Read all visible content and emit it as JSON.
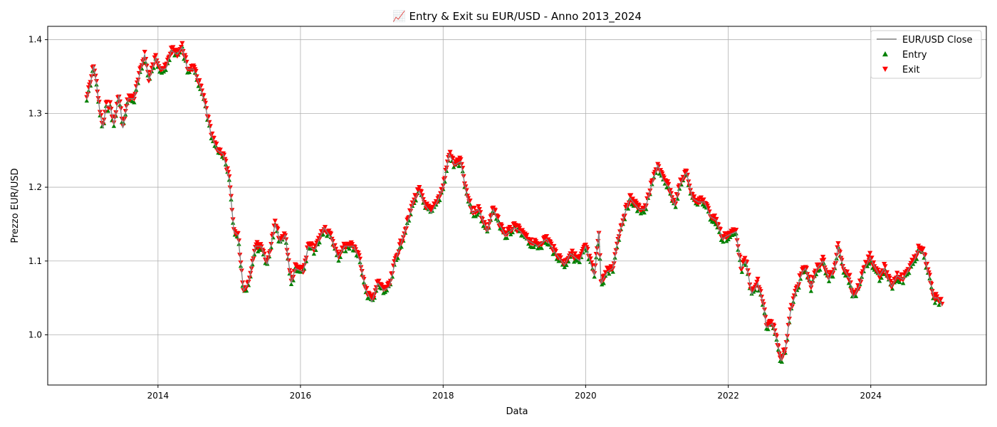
{
  "chart_data": {
    "type": "line",
    "title": "📈 Entry & Exit su EUR/USD - Anno 2013_2024",
    "xlabel": "Data",
    "ylabel": "Prezzo EUR/USD",
    "xlim": [
      "2012-06-15",
      "2025-08-15"
    ],
    "ylim": [
      0.932,
      1.418
    ],
    "x_ticks": [
      "2014",
      "2016",
      "2018",
      "2020",
      "2022",
      "2024"
    ],
    "y_ticks": [
      "1.0",
      "1.1",
      "1.2",
      "1.3",
      "1.4"
    ],
    "grid": true,
    "legend_position": "top-right",
    "legend": [
      "EUR/USD Close",
      "Entry",
      "Exit"
    ],
    "colors": {
      "close": "#808080",
      "entry": "#008000",
      "exit": "#ff0000"
    },
    "series": [
      {
        "name": "EUR/USD Close",
        "role": "close",
        "points": [
          [
            "2013-01-01",
            1.32
          ],
          [
            "2013-01-20",
            1.34
          ],
          [
            "2013-02-05",
            1.365
          ],
          [
            "2013-02-20",
            1.34
          ],
          [
            "2013-03-10",
            1.3
          ],
          [
            "2013-03-25",
            1.28
          ],
          [
            "2013-04-10",
            1.31
          ],
          [
            "2013-05-01",
            1.31
          ],
          [
            "2013-05-20",
            1.285
          ],
          [
            "2013-06-15",
            1.325
          ],
          [
            "2013-07-05",
            1.28
          ],
          [
            "2013-08-01",
            1.32
          ],
          [
            "2013-09-01",
            1.32
          ],
          [
            "2013-10-01",
            1.355
          ],
          [
            "2013-10-25",
            1.38
          ],
          [
            "2013-11-15",
            1.345
          ],
          [
            "2013-12-20",
            1.375
          ],
          [
            "2014-01-15",
            1.36
          ],
          [
            "2014-02-10",
            1.36
          ],
          [
            "2014-03-10",
            1.385
          ],
          [
            "2014-04-10",
            1.38
          ],
          [
            "2014-05-05",
            1.39
          ],
          [
            "2014-06-01",
            1.36
          ],
          [
            "2014-07-01",
            1.36
          ],
          [
            "2014-08-01",
            1.34
          ],
          [
            "2014-09-01",
            1.31
          ],
          [
            "2014-10-01",
            1.27
          ],
          [
            "2014-11-01",
            1.25
          ],
          [
            "2014-12-01",
            1.245
          ],
          [
            "2015-01-01",
            1.21
          ],
          [
            "2015-01-25",
            1.14
          ],
          [
            "2015-02-15",
            1.135
          ],
          [
            "2015-03-15",
            1.06
          ],
          [
            "2015-04-10",
            1.07
          ],
          [
            "2015-05-15",
            1.12
          ],
          [
            "2015-06-15",
            1.12
          ],
          [
            "2015-07-15",
            1.095
          ],
          [
            "2015-08-24",
            1.15
          ],
          [
            "2015-09-20",
            1.125
          ],
          [
            "2015-10-15",
            1.135
          ],
          [
            "2015-11-15",
            1.07
          ],
          [
            "2015-12-05",
            1.09
          ],
          [
            "2016-01-15",
            1.085
          ],
          [
            "2016-02-10",
            1.12
          ],
          [
            "2016-03-15",
            1.115
          ],
          [
            "2016-05-01",
            1.145
          ],
          [
            "2016-06-10",
            1.13
          ],
          [
            "2016-07-10",
            1.105
          ],
          [
            "2016-08-15",
            1.12
          ],
          [
            "2016-10-01",
            1.12
          ],
          [
            "2016-11-01",
            1.1
          ],
          [
            "2016-12-01",
            1.06
          ],
          [
            "2017-01-01",
            1.045
          ],
          [
            "2017-02-01",
            1.07
          ],
          [
            "2017-03-01",
            1.06
          ],
          [
            "2017-04-01",
            1.065
          ],
          [
            "2017-05-01",
            1.1
          ],
          [
            "2017-06-01",
            1.125
          ],
          [
            "2017-07-01",
            1.15
          ],
          [
            "2017-08-01",
            1.18
          ],
          [
            "2017-09-01",
            1.195
          ],
          [
            "2017-10-01",
            1.175
          ],
          [
            "2017-11-01",
            1.165
          ],
          [
            "2017-12-01",
            1.18
          ],
          [
            "2018-01-01",
            1.2
          ],
          [
            "2018-02-01",
            1.245
          ],
          [
            "2018-03-01",
            1.23
          ],
          [
            "2018-04-01",
            1.235
          ],
          [
            "2018-05-01",
            1.19
          ],
          [
            "2018-06-01",
            1.165
          ],
          [
            "2018-07-01",
            1.17
          ],
          [
            "2018-08-15",
            1.14
          ],
          [
            "2018-09-15",
            1.17
          ],
          [
            "2018-10-15",
            1.15
          ],
          [
            "2018-11-15",
            1.135
          ],
          [
            "2019-01-01",
            1.145
          ],
          [
            "2019-02-01",
            1.14
          ],
          [
            "2019-03-01",
            1.13
          ],
          [
            "2019-04-01",
            1.125
          ],
          [
            "2019-05-01",
            1.12
          ],
          [
            "2019-06-15",
            1.13
          ],
          [
            "2019-08-01",
            1.11
          ],
          [
            "2019-09-15",
            1.095
          ],
          [
            "2019-10-15",
            1.11
          ],
          [
            "2019-12-01",
            1.1
          ],
          [
            "2020-01-01",
            1.12
          ],
          [
            "2020-02-15",
            1.08
          ],
          [
            "2020-03-09",
            1.14
          ],
          [
            "2020-03-20",
            1.07
          ],
          [
            "2020-04-20",
            1.085
          ],
          [
            "2020-05-20",
            1.09
          ],
          [
            "2020-06-15",
            1.13
          ],
          [
            "2020-07-15",
            1.16
          ],
          [
            "2020-08-15",
            1.185
          ],
          [
            "2020-10-01",
            1.17
          ],
          [
            "2020-11-01",
            1.17
          ],
          [
            "2020-12-01",
            1.2
          ],
          [
            "2021-01-05",
            1.23
          ],
          [
            "2021-02-01",
            1.21
          ],
          [
            "2021-03-01",
            1.2
          ],
          [
            "2021-04-01",
            1.175
          ],
          [
            "2021-05-01",
            1.205
          ],
          [
            "2021-06-01",
            1.22
          ],
          [
            "2021-07-01",
            1.185
          ],
          [
            "2021-08-01",
            1.18
          ],
          [
            "2021-09-01",
            1.18
          ],
          [
            "2021-10-01",
            1.16
          ],
          [
            "2021-11-01",
            1.155
          ],
          [
            "2021-12-01",
            1.13
          ],
          [
            "2022-01-01",
            1.135
          ],
          [
            "2022-02-10",
            1.14
          ],
          [
            "2022-03-07",
            1.09
          ],
          [
            "2022-04-01",
            1.1
          ],
          [
            "2022-05-01",
            1.055
          ],
          [
            "2022-06-01",
            1.07
          ],
          [
            "2022-07-01",
            1.04
          ],
          [
            "2022-07-15",
            1.01
          ],
          [
            "2022-08-15",
            1.015
          ],
          [
            "2022-09-01",
            1.0
          ],
          [
            "2022-09-28",
            0.965
          ],
          [
            "2022-10-20",
            0.98
          ],
          [
            "2022-11-15",
            1.03
          ],
          [
            "2022-12-15",
            1.06
          ],
          [
            "2023-01-15",
            1.085
          ],
          [
            "2023-02-01",
            1.09
          ],
          [
            "2023-03-01",
            1.065
          ],
          [
            "2023-04-01",
            1.09
          ],
          [
            "2023-05-01",
            1.1
          ],
          [
            "2023-06-01",
            1.075
          ],
          [
            "2023-07-01",
            1.09
          ],
          [
            "2023-07-18",
            1.12
          ],
          [
            "2023-08-15",
            1.09
          ],
          [
            "2023-09-15",
            1.075
          ],
          [
            "2023-10-03",
            1.05
          ],
          [
            "2023-11-01",
            1.065
          ],
          [
            "2023-12-01",
            1.09
          ],
          [
            "2023-12-28",
            1.105
          ],
          [
            "2024-01-15",
            1.095
          ],
          [
            "2024-02-15",
            1.08
          ],
          [
            "2024-03-10",
            1.09
          ],
          [
            "2024-04-16",
            1.065
          ],
          [
            "2024-05-15",
            1.08
          ],
          [
            "2024-06-15",
            1.075
          ],
          [
            "2024-07-15",
            1.09
          ],
          [
            "2024-08-10",
            1.1
          ],
          [
            "2024-09-01",
            1.115
          ],
          [
            "2024-09-30",
            1.11
          ],
          [
            "2024-10-20",
            1.085
          ],
          [
            "2024-11-20",
            1.05
          ],
          [
            "2024-12-10",
            1.05
          ],
          [
            "2024-12-31",
            1.04
          ]
        ]
      },
      {
        "name": "Entry",
        "role": "entry",
        "marker": "triangle-up",
        "markers_on": "close"
      },
      {
        "name": "Exit",
        "role": "exit",
        "marker": "triangle-down",
        "markers_on": "close"
      }
    ]
  }
}
